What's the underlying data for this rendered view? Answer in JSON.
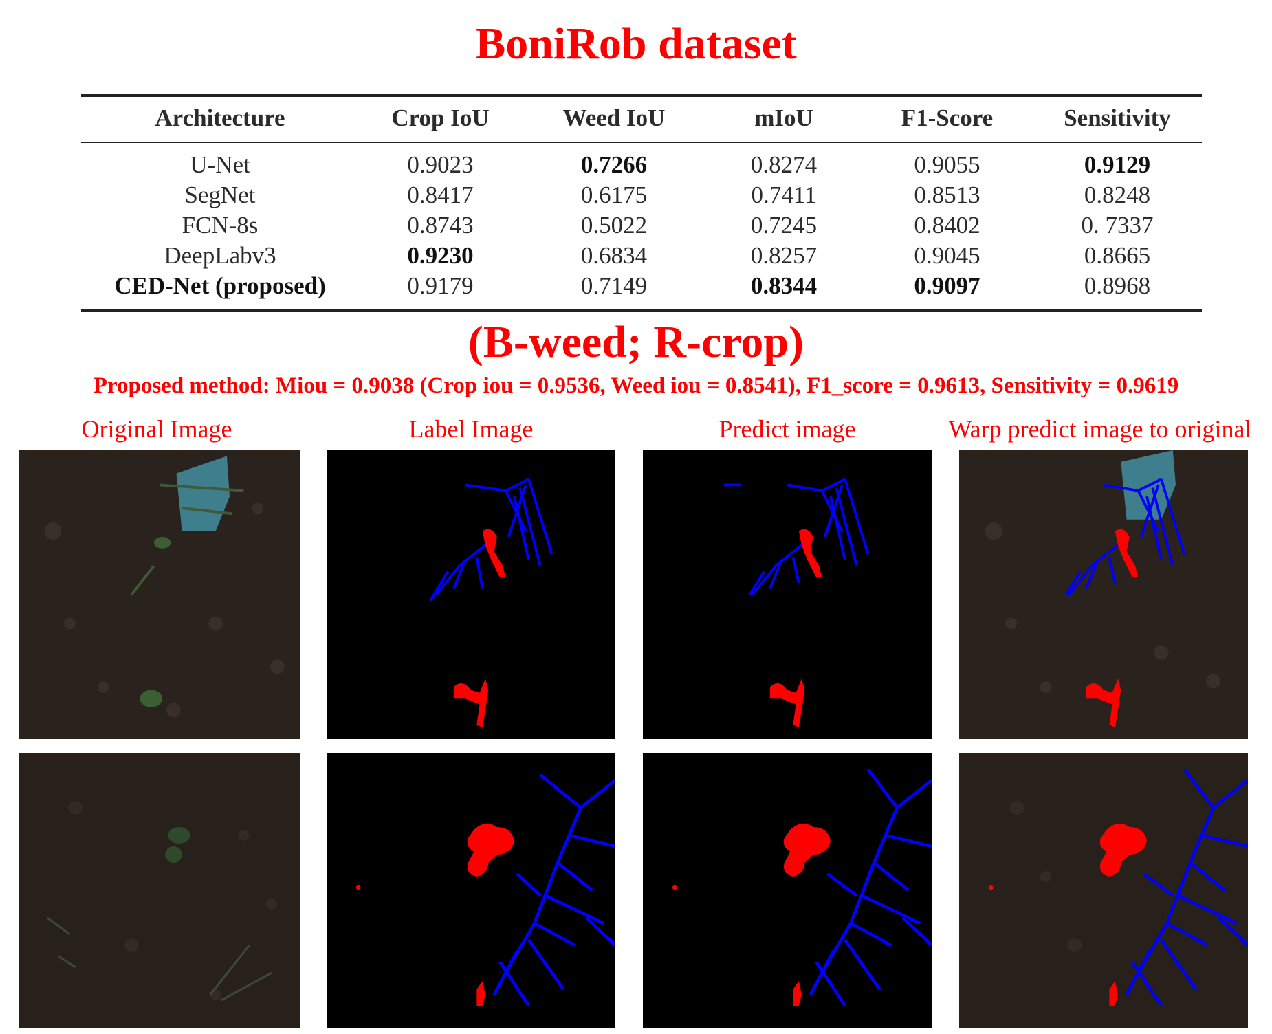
{
  "title": "BoniRob dataset",
  "table": {
    "headers": [
      "Architecture",
      "Crop IoU",
      "Weed IoU",
      "mIoU",
      "F1-Score",
      "Sensitivity"
    ],
    "rows": [
      {
        "architecture": "U-Net",
        "crop_iou": "0.9023",
        "weed_iou": "0.7266",
        "miou": "0.8274",
        "f1": "0.9055",
        "sensitivity": "0.9129"
      },
      {
        "architecture": "SegNet",
        "crop_iou": "0.8417",
        "weed_iou": "0.6175",
        "miou": "0.7411",
        "f1": "0.8513",
        "sensitivity": "0.8248"
      },
      {
        "architecture": "FCN-8s",
        "crop_iou": "0.8743",
        "weed_iou": "0.5022",
        "miou": "0.7245",
        "f1": "0.8402",
        "sensitivity": "0. 7337"
      },
      {
        "architecture": "DeepLabv3",
        "crop_iou": "0.9230",
        "weed_iou": "0.6834",
        "miou": "0.8257",
        "f1": "0.9045",
        "sensitivity": "0.8665"
      },
      {
        "architecture": "CED-Net (proposed)",
        "crop_iou": "0.9179",
        "weed_iou": "0.7149",
        "miou": "0.8344",
        "f1": "0.9097",
        "sensitivity": "0.8968"
      }
    ]
  },
  "legend_text": "(B-weed; R-crop)",
  "summary": "Proposed method: Miou = 0.9038 (Crop iou = 0.9536, Weed iou = 0.8541), F1_score = 0.9613, Sensitivity = 0.9619",
  "captions": [
    "Original Image",
    "Label Image",
    "Predict image",
    "Warp predict image to original"
  ],
  "colors": {
    "accent": "#ff0000",
    "weed": "#0000ff",
    "crop": "#ff0000",
    "soil": "#2a221c",
    "mask_background": "#000000"
  }
}
